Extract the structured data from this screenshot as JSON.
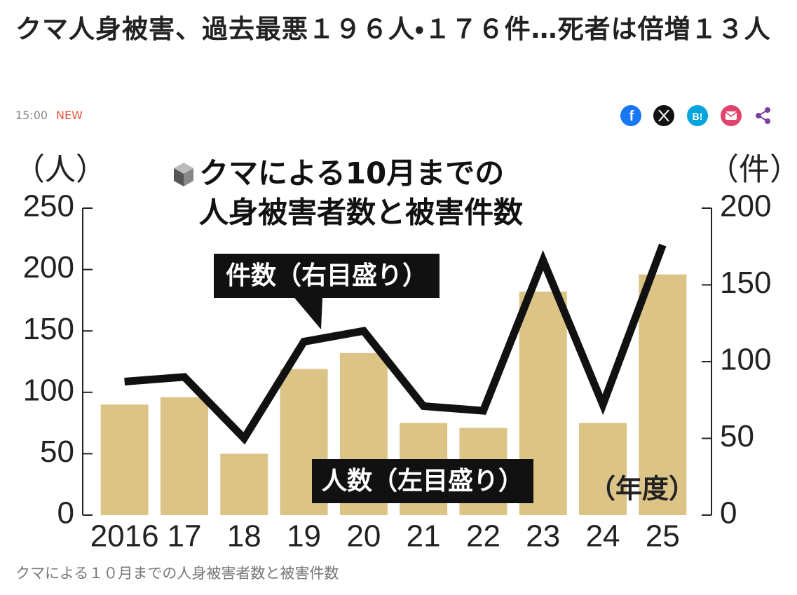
{
  "header": {
    "title": "クマ人身被害、過去最悪１９６人・１７６件…死者は倍増１３人",
    "time": "15:00",
    "badge": "NEW"
  },
  "share": {
    "facebook": "f",
    "hatena": "B!"
  },
  "chart_data": {
    "type": "bar",
    "title": [
      "クマによる10月までの",
      "人身被害者数と被害件数"
    ],
    "y_unit": "（人）",
    "y2_unit": "（件）",
    "x_unit": "（年度）",
    "categories": [
      "2016",
      "17",
      "18",
      "19",
      "20",
      "21",
      "22",
      "23",
      "24",
      "25"
    ],
    "series": [
      {
        "name": "人数（左目盛り）",
        "color": "#dcc386",
        "values": [
          90,
          96,
          50,
          119,
          132,
          75,
          71,
          182,
          75,
          196
        ]
      },
      {
        "name": "件数（右目盛り）",
        "type": "line",
        "axis": "y2",
        "color": "#111111",
        "values": [
          87,
          90,
          50,
          113,
          120,
          71,
          68,
          166,
          72,
          176
        ]
      }
    ],
    "ylim": [
      0,
      250
    ],
    "yticks": [
      0,
      50,
      100,
      150,
      200,
      250
    ],
    "y2lim": [
      0,
      200
    ],
    "y2ticks": [
      0,
      50,
      100,
      150,
      200
    ]
  },
  "caption": "クマによる１０月までの人身被害者数と被害件数"
}
